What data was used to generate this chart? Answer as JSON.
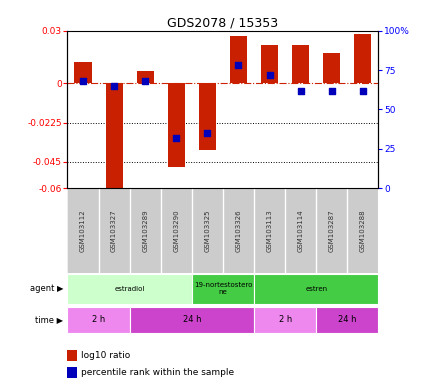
{
  "title": "GDS2078 / 15353",
  "samples": [
    "GSM103112",
    "GSM103327",
    "GSM103289",
    "GSM103290",
    "GSM103325",
    "GSM103326",
    "GSM103113",
    "GSM103114",
    "GSM103287",
    "GSM103288"
  ],
  "log10_ratio": [
    0.012,
    -0.062,
    0.007,
    -0.048,
    -0.038,
    0.027,
    0.022,
    0.022,
    0.017,
    0.028
  ],
  "percentile": [
    68,
    65,
    68,
    32,
    35,
    78,
    72,
    62,
    62,
    62
  ],
  "ylim_left": [
    -0.06,
    0.03
  ],
  "ylim_right": [
    0,
    100
  ],
  "yticks_left": [
    0.03,
    0,
    -0.0225,
    -0.045,
    -0.06
  ],
  "yticks_right": [
    100,
    75,
    50,
    25,
    0
  ],
  "ytick_labels_left": [
    "0.03",
    "0",
    "-0.0225",
    "-0.045",
    "-0.06"
  ],
  "ytick_labels_right": [
    "100%",
    "75",
    "50",
    "25",
    "0"
  ],
  "bar_color": "#c82000",
  "dot_color": "#0000bb",
  "zero_line_color": "#cc2200",
  "agent_groups": [
    {
      "label": "estradiol",
      "start": 0,
      "end": 4,
      "color": "#ccffcc"
    },
    {
      "label": "19-nortestostero\nne",
      "start": 4,
      "end": 6,
      "color": "#44cc44"
    },
    {
      "label": "estren",
      "start": 6,
      "end": 10,
      "color": "#44cc44"
    }
  ],
  "time_groups": [
    {
      "label": "2 h",
      "start": 0,
      "end": 2,
      "color": "#ee88ee"
    },
    {
      "label": "24 h",
      "start": 2,
      "end": 6,
      "color": "#cc44cc"
    },
    {
      "label": "2 h",
      "start": 6,
      "end": 8,
      "color": "#ee88ee"
    },
    {
      "label": "24 h",
      "start": 8,
      "end": 10,
      "color": "#cc44cc"
    }
  ],
  "legend_items": [
    {
      "color": "#c82000",
      "label": "log10 ratio"
    },
    {
      "color": "#0000bb",
      "label": "percentile rank within the sample"
    }
  ],
  "background_color": "#ffffff",
  "sample_bg": "#cccccc",
  "sample_border": "#ffffff"
}
